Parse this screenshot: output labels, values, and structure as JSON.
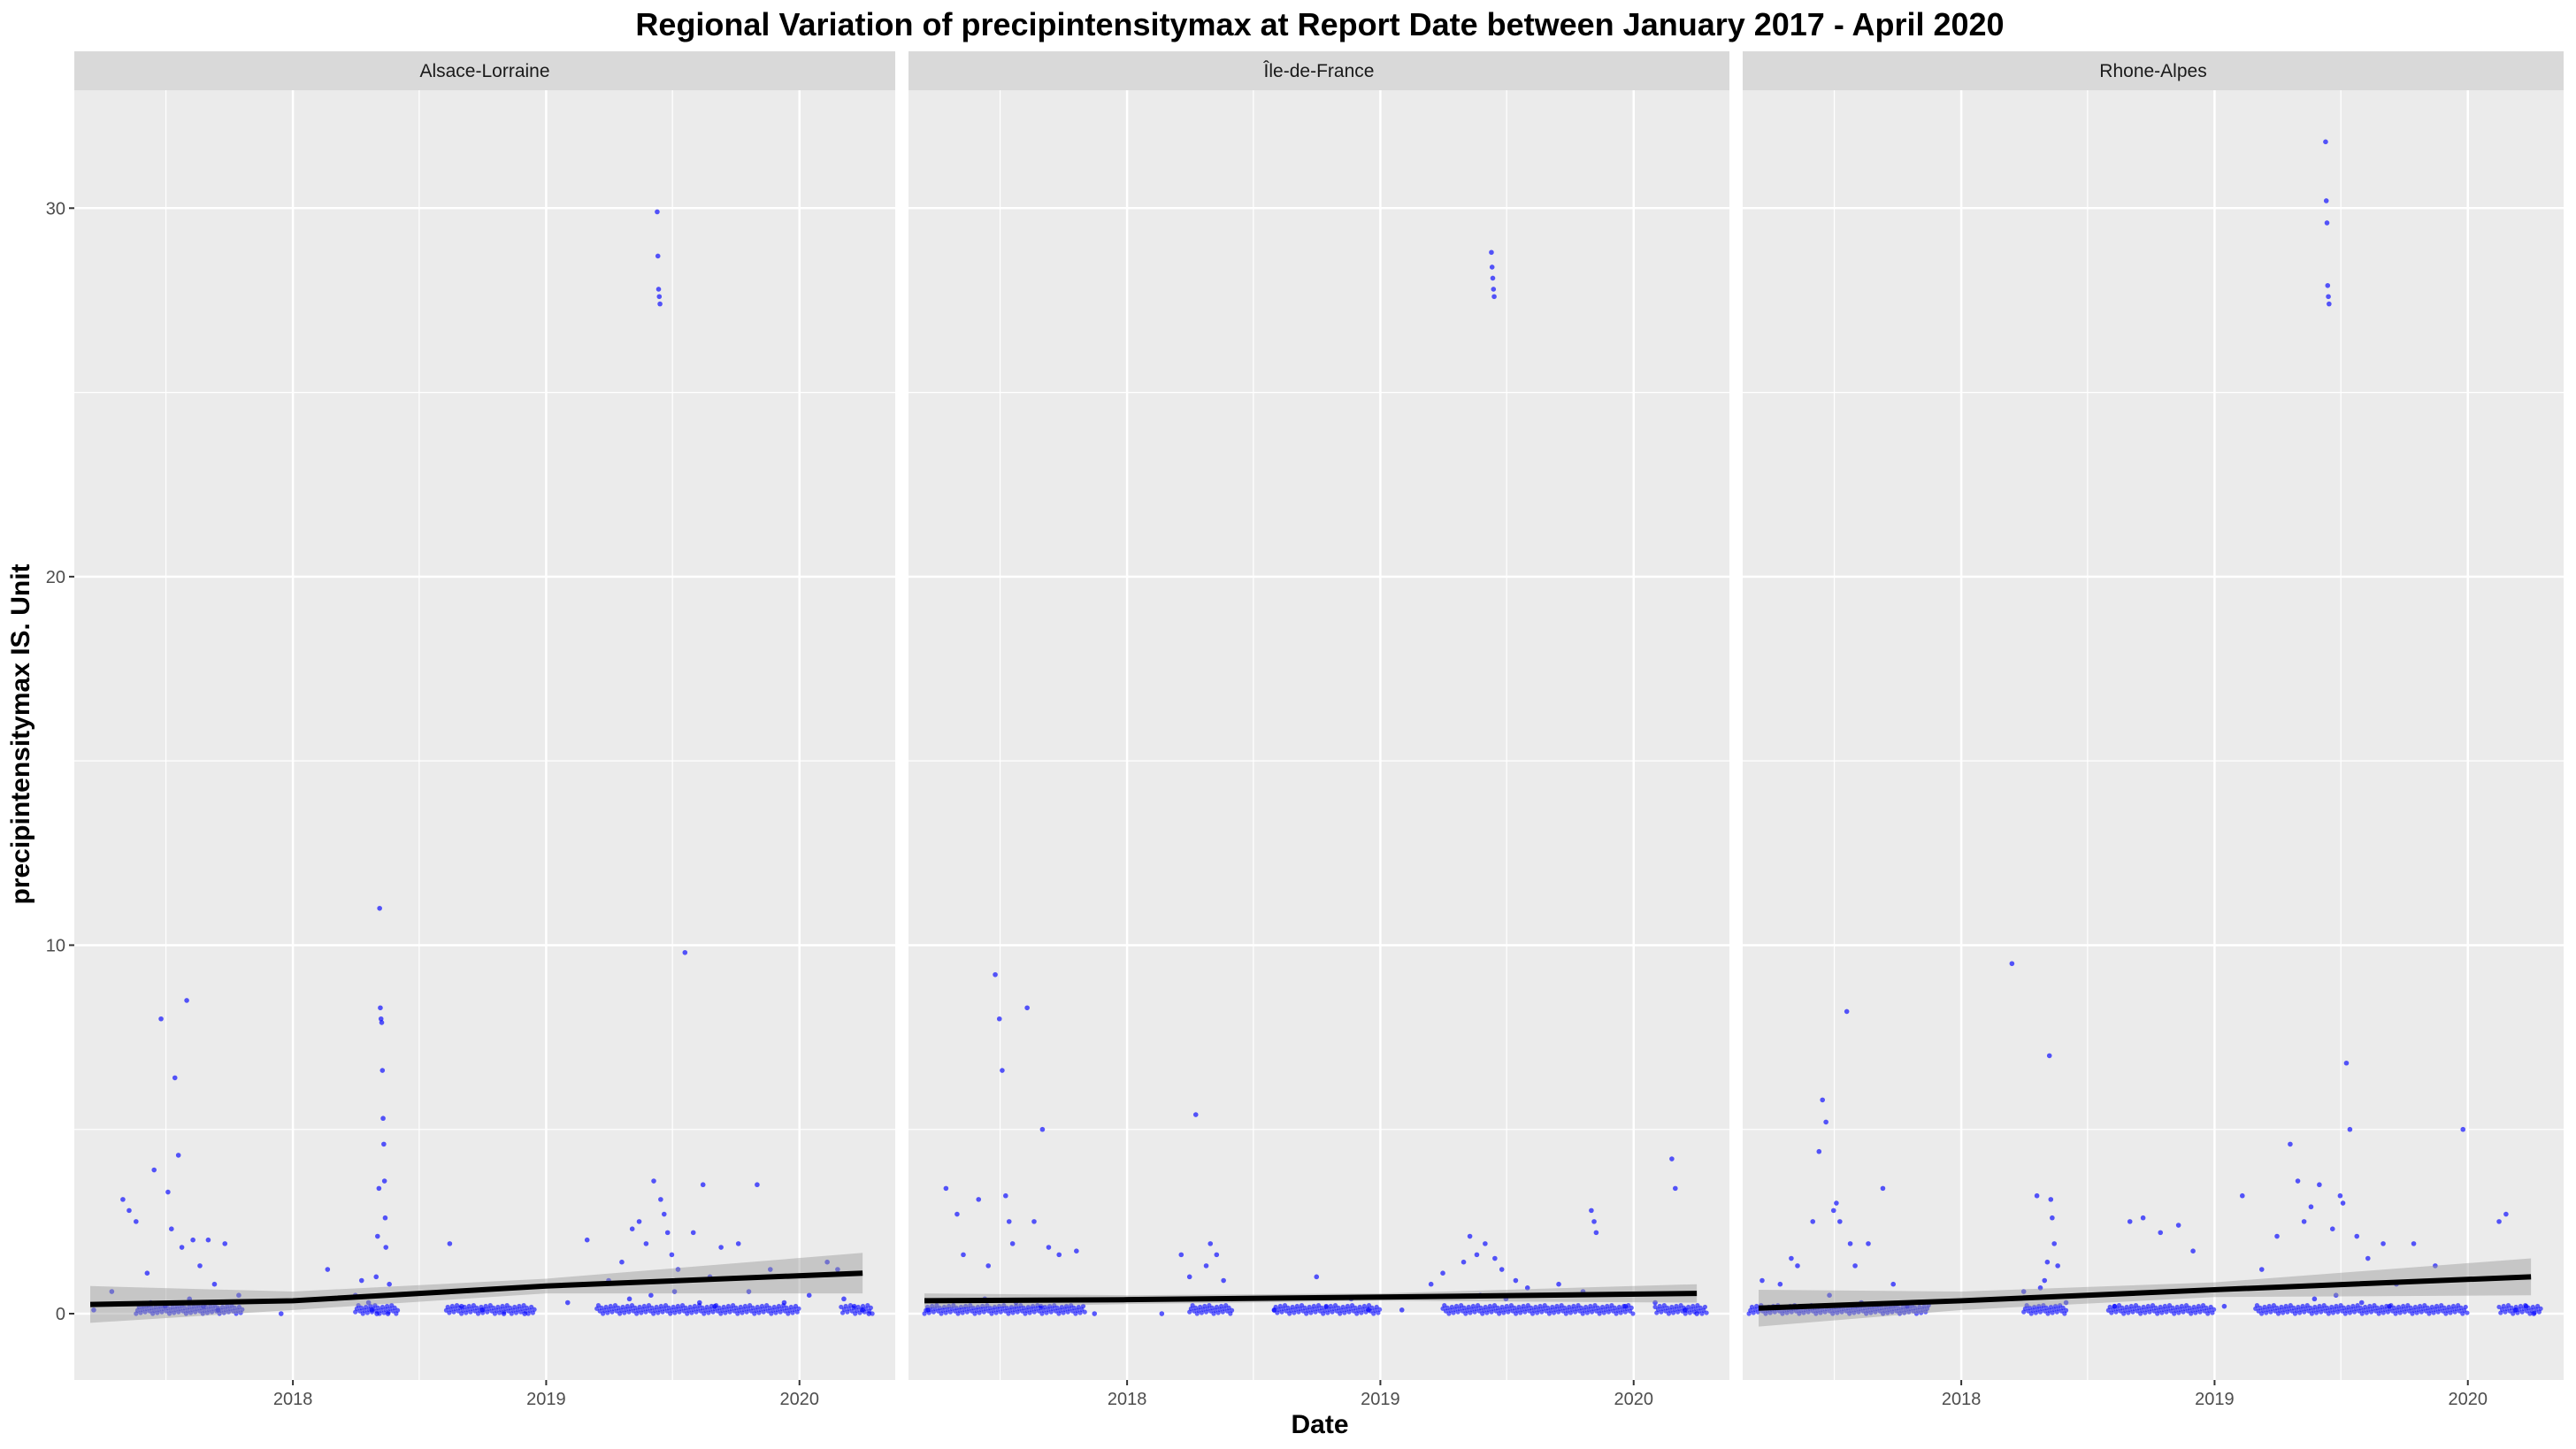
{
  "chart_data": {
    "type": "scatter",
    "title": "Regional Variation of  precipintensitymax  at Report Date between January 2017 - April 2020",
    "xlabel": "Date",
    "ylabel": "precipintensitymax  IS. Unit",
    "xlim": [
      "2017-02-20",
      "2020-05-18"
    ],
    "ylim": [
      -1.8,
      33.2
    ],
    "x_ticks": [
      {
        "date": "2018-01-01",
        "label": "2018"
      },
      {
        "date": "2019-01-01",
        "label": "2019"
      },
      {
        "date": "2020-01-01",
        "label": "2020"
      }
    ],
    "y_ticks": [
      0,
      10,
      20,
      30
    ],
    "y_tick_labels": [
      "0",
      "10",
      "20",
      "30"
    ],
    "grid": true,
    "point_color": "#0000ff",
    "trend_color": "#000000",
    "band_color": "#999999",
    "panel_background": "#ebebeb",
    "strip_background": "#d9d9d9",
    "facets": [
      {
        "name": "Alsace-Lorraine",
        "trend": {
          "x": [
            "2017-03-15",
            "2018-01-01",
            "2019-01-01",
            "2020-04-01"
          ],
          "y": [
            0.25,
            0.35,
            0.75,
            1.1
          ]
        },
        "band": {
          "upper": [
            0.75,
            0.6,
            0.95,
            1.65
          ],
          "lower": [
            -0.25,
            0.1,
            0.55,
            0.55
          ]
        },
        "points": [
          [
            "2017-03-20",
            0.1
          ],
          [
            "2017-04-15",
            0.6
          ],
          [
            "2017-05-01",
            3.1
          ],
          [
            "2017-05-10",
            2.8
          ],
          [
            "2017-05-20",
            2.5
          ],
          [
            "2017-06-05",
            1.1
          ],
          [
            "2017-06-15",
            3.9
          ],
          [
            "2017-06-25",
            8.0
          ],
          [
            "2017-07-05",
            3.3
          ],
          [
            "2017-07-10",
            2.3
          ],
          [
            "2017-07-15",
            6.4
          ],
          [
            "2017-07-20",
            4.3
          ],
          [
            "2017-07-25",
            1.8
          ],
          [
            "2017-08-01",
            8.5
          ],
          [
            "2017-08-10",
            2.0
          ],
          [
            "2017-08-20",
            1.3
          ],
          [
            "2017-09-01",
            2.0
          ],
          [
            "2017-09-10",
            0.8
          ],
          [
            "2017-09-25",
            1.9
          ],
          [
            "2017-10-15",
            0.5
          ],
          [
            "2017-06-10",
            0.3
          ],
          [
            "2017-07-01",
            0.2
          ],
          [
            "2017-08-05",
            0.4
          ],
          [
            "2017-08-25",
            0.2
          ],
          [
            "2017-09-15",
            0.1
          ],
          [
            "2017-12-15",
            0.0
          ],
          [
            "2018-02-20",
            1.2
          ],
          [
            "2018-04-01",
            0.5
          ],
          [
            "2018-04-10",
            0.9
          ],
          [
            "2018-04-20",
            0.3
          ],
          [
            "2018-05-01",
            1.0
          ],
          [
            "2018-05-03",
            2.1
          ],
          [
            "2018-05-05",
            3.4
          ],
          [
            "2018-05-06",
            11.0
          ],
          [
            "2018-05-07",
            8.3
          ],
          [
            "2018-05-08",
            8.0
          ],
          [
            "2018-05-09",
            7.9
          ],
          [
            "2018-05-10",
            6.6
          ],
          [
            "2018-05-11",
            5.3
          ],
          [
            "2018-05-12",
            4.6
          ],
          [
            "2018-05-13",
            3.6
          ],
          [
            "2018-05-14",
            2.6
          ],
          [
            "2018-05-15",
            1.8
          ],
          [
            "2018-05-20",
            0.8
          ],
          [
            "2018-04-25",
            0.1
          ],
          [
            "2018-05-02",
            0.0
          ],
          [
            "2018-05-18",
            0.0
          ],
          [
            "2018-08-15",
            1.9
          ],
          [
            "2018-09-01",
            0.2
          ],
          [
            "2018-10-01",
            0.1
          ],
          [
            "2018-11-01",
            0.0
          ],
          [
            "2018-12-01",
            0.0
          ],
          [
            "2019-02-01",
            0.3
          ],
          [
            "2019-03-01",
            2.0
          ],
          [
            "2019-04-01",
            0.9
          ],
          [
            "2019-04-20",
            1.4
          ],
          [
            "2019-05-05",
            2.3
          ],
          [
            "2019-05-15",
            2.5
          ],
          [
            "2019-05-25",
            1.9
          ],
          [
            "2019-06-05",
            3.6
          ],
          [
            "2019-06-10",
            29.9
          ],
          [
            "2019-06-11",
            28.7
          ],
          [
            "2019-06-12",
            27.8
          ],
          [
            "2019-06-13",
            27.6
          ],
          [
            "2019-06-14",
            27.4
          ],
          [
            "2019-06-15",
            3.1
          ],
          [
            "2019-06-20",
            2.7
          ],
          [
            "2019-06-25",
            2.2
          ],
          [
            "2019-07-01",
            1.6
          ],
          [
            "2019-07-10",
            1.2
          ],
          [
            "2019-07-20",
            9.8
          ],
          [
            "2019-08-01",
            2.2
          ],
          [
            "2019-08-15",
            3.5
          ],
          [
            "2019-08-25",
            1.0
          ],
          [
            "2019-09-10",
            1.8
          ],
          [
            "2019-10-05",
            1.9
          ],
          [
            "2019-10-20",
            0.6
          ],
          [
            "2019-11-01",
            3.5
          ],
          [
            "2019-11-20",
            1.2
          ],
          [
            "2019-12-10",
            0.3
          ],
          [
            "2020-01-15",
            0.5
          ],
          [
            "2020-02-10",
            1.4
          ],
          [
            "2020-02-25",
            1.2
          ],
          [
            "2020-03-05",
            0.4
          ],
          [
            "2020-03-20",
            0.2
          ],
          [
            "2019-05-01",
            0.4
          ],
          [
            "2019-06-01",
            0.5
          ],
          [
            "2019-07-05",
            0.6
          ],
          [
            "2019-08-10",
            0.3
          ],
          [
            "2019-09-01",
            0.2
          ],
          [
            "2020-04-01",
            0.1
          ],
          [
            "2020-04-10",
            0.0
          ]
        ],
        "zero_clusters": [
          [
            "2017-05-20",
            "2017-10-20"
          ],
          [
            "2018-04-01",
            "2018-06-01"
          ],
          [
            "2018-08-10",
            "2018-12-15"
          ],
          [
            "2019-03-15",
            "2019-12-31"
          ],
          [
            "2020-03-01",
            "2020-04-15"
          ]
        ]
      },
      {
        "name": "Île-de-France",
        "trend": {
          "x": [
            "2017-03-15",
            "2018-01-01",
            "2019-01-01",
            "2020-04-01"
          ],
          "y": [
            0.35,
            0.38,
            0.45,
            0.55
          ]
        },
        "band": {
          "upper": [
            0.55,
            0.5,
            0.55,
            0.8
          ],
          "lower": [
            0.15,
            0.26,
            0.35,
            0.3
          ]
        },
        "points": [
          [
            "2017-03-20",
            0.1
          ],
          [
            "2017-04-15",
            3.4
          ],
          [
            "2017-05-01",
            2.7
          ],
          [
            "2017-05-10",
            1.6
          ],
          [
            "2017-06-01",
            3.1
          ],
          [
            "2017-06-15",
            1.3
          ],
          [
            "2017-06-25",
            9.2
          ],
          [
            "2017-07-01",
            8.0
          ],
          [
            "2017-07-05",
            6.6
          ],
          [
            "2017-07-10",
            3.2
          ],
          [
            "2017-07-15",
            2.5
          ],
          [
            "2017-07-20",
            1.9
          ],
          [
            "2017-08-10",
            8.3
          ],
          [
            "2017-08-20",
            2.5
          ],
          [
            "2017-09-01",
            5.0
          ],
          [
            "2017-09-10",
            1.8
          ],
          [
            "2017-09-25",
            1.6
          ],
          [
            "2017-10-20",
            1.7
          ],
          [
            "2017-06-10",
            0.4
          ],
          [
            "2017-07-25",
            0.3
          ],
          [
            "2017-08-30",
            0.2
          ],
          [
            "2017-11-15",
            0.0
          ],
          [
            "2018-02-20",
            0.0
          ],
          [
            "2018-03-20",
            1.6
          ],
          [
            "2018-04-01",
            1.0
          ],
          [
            "2018-04-10",
            5.4
          ],
          [
            "2018-04-25",
            1.3
          ],
          [
            "2018-05-01",
            1.9
          ],
          [
            "2018-05-10",
            1.6
          ],
          [
            "2018-05-20",
            0.9
          ],
          [
            "2018-06-01",
            0.4
          ],
          [
            "2018-08-01",
            0.1
          ],
          [
            "2018-10-01",
            1.0
          ],
          [
            "2018-10-15",
            0.2
          ],
          [
            "2018-11-20",
            0.4
          ],
          [
            "2018-12-15",
            0.1
          ],
          [
            "2019-02-01",
            0.1
          ],
          [
            "2019-03-15",
            0.8
          ],
          [
            "2019-04-01",
            1.1
          ],
          [
            "2019-05-01",
            1.4
          ],
          [
            "2019-05-10",
            2.1
          ],
          [
            "2019-05-20",
            1.6
          ],
          [
            "2019-06-01",
            1.9
          ],
          [
            "2019-06-10",
            28.8
          ],
          [
            "2019-06-11",
            28.4
          ],
          [
            "2019-06-12",
            28.1
          ],
          [
            "2019-06-13",
            27.8
          ],
          [
            "2019-06-14",
            27.6
          ],
          [
            "2019-06-15",
            1.5
          ],
          [
            "2019-06-25",
            1.2
          ],
          [
            "2019-07-15",
            0.9
          ],
          [
            "2019-08-01",
            0.7
          ],
          [
            "2019-08-20",
            0.5
          ],
          [
            "2019-09-15",
            0.8
          ],
          [
            "2019-10-20",
            0.6
          ],
          [
            "2019-11-01",
            2.8
          ],
          [
            "2019-11-05",
            2.5
          ],
          [
            "2019-11-08",
            2.2
          ],
          [
            "2019-12-20",
            0.2
          ],
          [
            "2020-02-01",
            0.3
          ],
          [
            "2020-02-25",
            4.2
          ],
          [
            "2020-03-01",
            3.4
          ],
          [
            "2020-03-15",
            0.1
          ],
          [
            "2020-04-01",
            0.0
          ],
          [
            "2019-07-01",
            0.4
          ],
          [
            "2019-05-25",
            0.5
          ]
        ],
        "zero_clusters": [
          [
            "2017-03-15",
            "2017-11-01"
          ],
          [
            "2018-04-01",
            "2018-06-01"
          ],
          [
            "2018-08-01",
            "2018-12-31"
          ],
          [
            "2019-04-01",
            "2019-12-31"
          ],
          [
            "2020-02-01",
            "2020-04-15"
          ]
        ]
      },
      {
        "name": "Rhone-Alpes",
        "trend": {
          "x": [
            "2017-03-15",
            "2018-01-01",
            "2019-01-01",
            "2020-04-01"
          ],
          "y": [
            0.15,
            0.35,
            0.65,
            1.0
          ]
        },
        "band": {
          "upper": [
            0.65,
            0.6,
            0.85,
            1.5
          ],
          "lower": [
            -0.35,
            0.1,
            0.45,
            0.5
          ]
        },
        "points": [
          [
            "2017-03-20",
            0.9
          ],
          [
            "2017-04-15",
            0.8
          ],
          [
            "2017-05-01",
            1.5
          ],
          [
            "2017-05-10",
            1.3
          ],
          [
            "2017-06-01",
            2.5
          ],
          [
            "2017-06-10",
            4.4
          ],
          [
            "2017-06-15",
            5.8
          ],
          [
            "2017-06-20",
            5.2
          ],
          [
            "2017-07-01",
            2.8
          ],
          [
            "2017-07-05",
            3.0
          ],
          [
            "2017-07-10",
            2.5
          ],
          [
            "2017-07-20",
            8.2
          ],
          [
            "2017-07-25",
            1.9
          ],
          [
            "2017-08-01",
            1.3
          ],
          [
            "2017-08-20",
            1.9
          ],
          [
            "2017-09-10",
            3.4
          ],
          [
            "2017-09-25",
            0.8
          ],
          [
            "2017-06-25",
            0.5
          ],
          [
            "2017-08-10",
            0.3
          ],
          [
            "2017-10-15",
            0.2
          ],
          [
            "2018-03-15",
            9.5
          ],
          [
            "2018-04-01",
            0.6
          ],
          [
            "2018-04-20",
            3.2
          ],
          [
            "2018-05-01",
            0.9
          ],
          [
            "2018-05-05",
            1.4
          ],
          [
            "2018-05-08",
            7.0
          ],
          [
            "2018-05-10",
            3.1
          ],
          [
            "2018-05-12",
            2.6
          ],
          [
            "2018-05-15",
            1.9
          ],
          [
            "2018-05-20",
            1.3
          ],
          [
            "2018-04-25",
            0.7
          ],
          [
            "2018-06-01",
            0.3
          ],
          [
            "2018-08-10",
            0.2
          ],
          [
            "2018-09-01",
            2.5
          ],
          [
            "2018-09-20",
            2.6
          ],
          [
            "2018-10-15",
            2.2
          ],
          [
            "2018-11-10",
            2.4
          ],
          [
            "2018-12-01",
            1.7
          ],
          [
            "2019-01-15",
            0.2
          ],
          [
            "2019-02-10",
            3.2
          ],
          [
            "2019-03-10",
            1.2
          ],
          [
            "2019-04-01",
            2.1
          ],
          [
            "2019-04-20",
            4.6
          ],
          [
            "2019-05-01",
            3.6
          ],
          [
            "2019-05-10",
            2.5
          ],
          [
            "2019-05-20",
            2.9
          ],
          [
            "2019-06-01",
            3.5
          ],
          [
            "2019-06-10",
            31.8
          ],
          [
            "2019-06-11",
            30.2
          ],
          [
            "2019-06-12",
            29.6
          ],
          [
            "2019-06-13",
            27.9
          ],
          [
            "2019-06-14",
            27.6
          ],
          [
            "2019-06-15",
            27.4
          ],
          [
            "2019-06-20",
            2.3
          ],
          [
            "2019-07-01",
            3.2
          ],
          [
            "2019-07-05",
            3.0
          ],
          [
            "2019-07-10",
            6.8
          ],
          [
            "2019-07-15",
            5.0
          ],
          [
            "2019-07-25",
            2.1
          ],
          [
            "2019-08-10",
            1.5
          ],
          [
            "2019-09-01",
            1.9
          ],
          [
            "2019-09-20",
            0.8
          ],
          [
            "2019-10-15",
            1.9
          ],
          [
            "2019-11-15",
            1.3
          ],
          [
            "2019-12-25",
            5.0
          ],
          [
            "2020-02-15",
            2.5
          ],
          [
            "2020-02-25",
            2.7
          ],
          [
            "2020-03-10",
            0.1
          ],
          [
            "2020-03-25",
            0.2
          ],
          [
            "2020-04-05",
            0.0
          ],
          [
            "2019-05-25",
            0.4
          ],
          [
            "2019-06-25",
            0.5
          ],
          [
            "2019-08-01",
            0.3
          ],
          [
            "2019-09-10",
            0.2
          ]
        ],
        "zero_clusters": [
          [
            "2017-03-01",
            "2017-11-15"
          ],
          [
            "2018-04-01",
            "2018-06-01"
          ],
          [
            "2018-08-01",
            "2018-12-31"
          ],
          [
            "2019-03-01",
            "2019-12-31"
          ],
          [
            "2020-02-15",
            "2020-04-15"
          ]
        ]
      }
    ]
  }
}
